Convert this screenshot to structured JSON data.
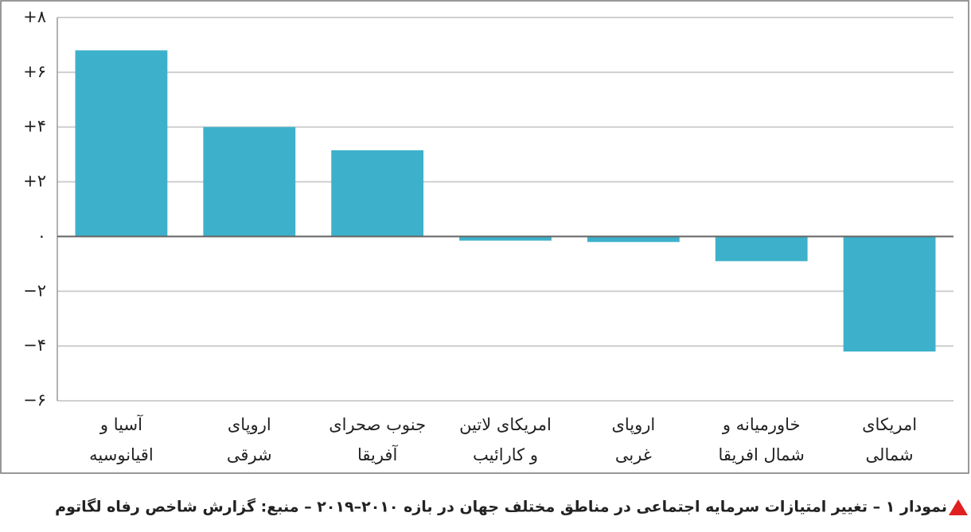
{
  "chart_data": {
    "type": "bar",
    "caption": "نمودار ۱ – تغییر امتیازات سرمایه اجتماعی در مناطق مختلف جهان در بازه ۲۰۱۰–۲۰۱۹ – منبع: گزارش شاخص رفاه لگاتوم",
    "categories": [
      [
        "آسیا و",
        "اقیانوسیه"
      ],
      [
        "اروپای",
        "شرقی"
      ],
      [
        "جنوب صحرای",
        "آفریقا"
      ],
      [
        "امریکای لاتین",
        "و کارائیب"
      ],
      [
        "اروپای",
        "غربی"
      ],
      [
        "خاورمیانه و",
        "شمال افریقا"
      ],
      [
        "امریکای",
        "شمالی"
      ]
    ],
    "values": [
      6.8,
      4.0,
      3.15,
      -0.15,
      -0.2,
      -0.9,
      -4.2
    ],
    "color": "#3db1cb",
    "ylim": [
      -6,
      8
    ],
    "yticks": [
      {
        "value": -6,
        "label": "−۶"
      },
      {
        "value": -4,
        "label": "−۴"
      },
      {
        "value": -2,
        "label": "−۲"
      },
      {
        "value": 0,
        "label": "۰"
      },
      {
        "value": 2,
        "label": "+۲"
      },
      {
        "value": 4,
        "label": "+۴"
      },
      {
        "value": 6,
        "label": "+۶"
      },
      {
        "value": 8,
        "label": "+۸"
      }
    ],
    "grid": true
  }
}
